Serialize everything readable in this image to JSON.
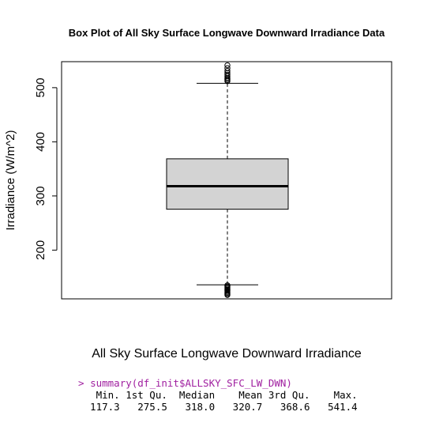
{
  "chart_data": {
    "type": "box",
    "title": "Box Plot of All Sky Surface Longwave Downward Irradiance Data",
    "xlabel": "All Sky Surface Longwave Downward Irradiance",
    "ylabel": "Irradiance (W/m^2)",
    "yticks": [
      200,
      300,
      400,
      500
    ],
    "ylim": [
      110,
      548
    ],
    "stats": {
      "min": 117.3,
      "q1": 275.5,
      "median": 318.0,
      "mean": 320.7,
      "q3": 368.6,
      "max": 541.4,
      "lower_whisker": 136,
      "upper_whisker": 508
    },
    "outliers_high": [
      541.4,
      536,
      531,
      527,
      524,
      521,
      518,
      516,
      514,
      512
    ],
    "outliers_low": [
      117.3,
      119,
      121,
      123,
      125,
      127,
      129,
      131,
      133,
      135
    ],
    "colors": {
      "box_fill": "#d3d3d3",
      "stroke": "#000000"
    }
  },
  "console": {
    "prompt": ">",
    "command": "summary(df_init$ALLSKY_SFC_LW_DWN)",
    "header": "   Min. 1st Qu.  Median    Mean 3rd Qu.    Max. ",
    "values": "  117.3   275.5   318.0   320.7   368.6   541.4 "
  }
}
